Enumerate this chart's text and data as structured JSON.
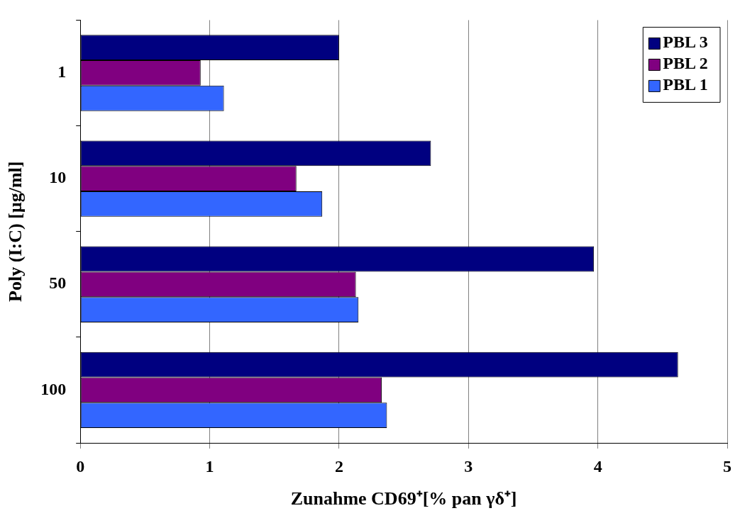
{
  "chart_data": {
    "type": "bar",
    "orientation": "horizontal",
    "xlabel": "Zunahme CD69⁺[% pan γδ⁺]",
    "ylabel": "Poly (I:C) [µg/ml]",
    "categories": [
      "1",
      "10",
      "50",
      "100"
    ],
    "series": [
      {
        "name": "PBL 3",
        "color": "#000080",
        "values": [
          2.0,
          2.71,
          3.97,
          4.62
        ]
      },
      {
        "name": "PBL 2",
        "color": "#800080",
        "values": [
          0.93,
          1.67,
          2.13,
          2.33
        ]
      },
      {
        "name": "PBL 1",
        "color": "#3366ff",
        "values": [
          1.11,
          1.87,
          2.15,
          2.37
        ]
      }
    ],
    "xlim": [
      0,
      5
    ],
    "xticks": [
      0,
      1,
      2,
      3,
      4,
      5
    ],
    "grid": "x",
    "legend": "top right"
  }
}
